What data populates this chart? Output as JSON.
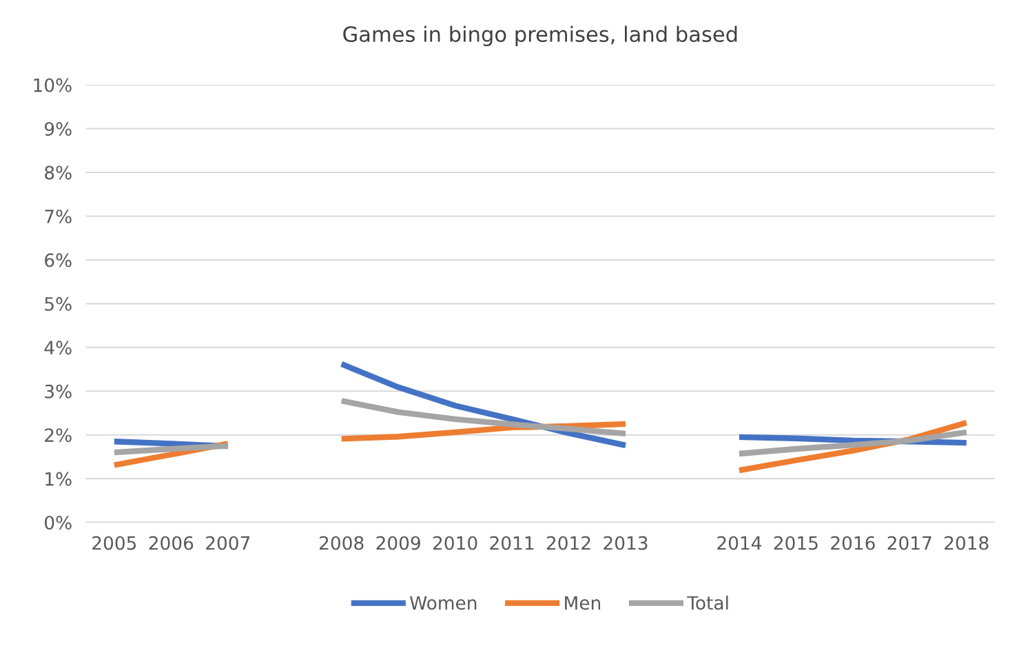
{
  "chart_data": {
    "type": "line",
    "title": "Games in bingo premises, land based",
    "categories": [
      "2005",
      "2006",
      "2007",
      null,
      "2008",
      "2009",
      "2010",
      "2011",
      "2012",
      "2013",
      null,
      "2014",
      "2015",
      "2016",
      "2017",
      "2018"
    ],
    "series": [
      {
        "name": "Women",
        "color": "#4472c4",
        "values": [
          1.85,
          1.8,
          1.74,
          null,
          3.62,
          3.09,
          2.67,
          2.36,
          2.04,
          1.76,
          null,
          1.95,
          1.92,
          1.87,
          1.85,
          1.82
        ]
      },
      {
        "name": "Men",
        "color": "#ed7d31",
        "values": [
          1.31,
          1.55,
          1.8,
          null,
          1.91,
          1.96,
          2.06,
          2.17,
          2.2,
          2.25,
          null,
          1.19,
          1.42,
          1.64,
          1.9,
          2.28
        ]
      },
      {
        "name": "Total",
        "color": "#a5a5a5",
        "values": [
          1.6,
          1.68,
          1.75,
          null,
          2.78,
          2.52,
          2.36,
          2.24,
          2.14,
          2.03,
          null,
          1.57,
          1.68,
          1.77,
          1.87,
          2.06
        ]
      }
    ],
    "ylim": [
      0,
      10
    ],
    "yticks": [
      {
        "value": 0,
        "label": "0%"
      },
      {
        "value": 1,
        "label": "1%"
      },
      {
        "value": 2,
        "label": "2%"
      },
      {
        "value": 3,
        "label": "3%"
      },
      {
        "value": 4,
        "label": "4%"
      },
      {
        "value": 5,
        "label": "5%"
      },
      {
        "value": 6,
        "label": "6%"
      },
      {
        "value": 7,
        "label": "7%"
      },
      {
        "value": 8,
        "label": "8%"
      },
      {
        "value": 9,
        "label": "9%"
      },
      {
        "value": 10,
        "label": "10%"
      }
    ],
    "grid": "y",
    "legend": "bottom",
    "marker": "none",
    "line_style": "solid"
  }
}
